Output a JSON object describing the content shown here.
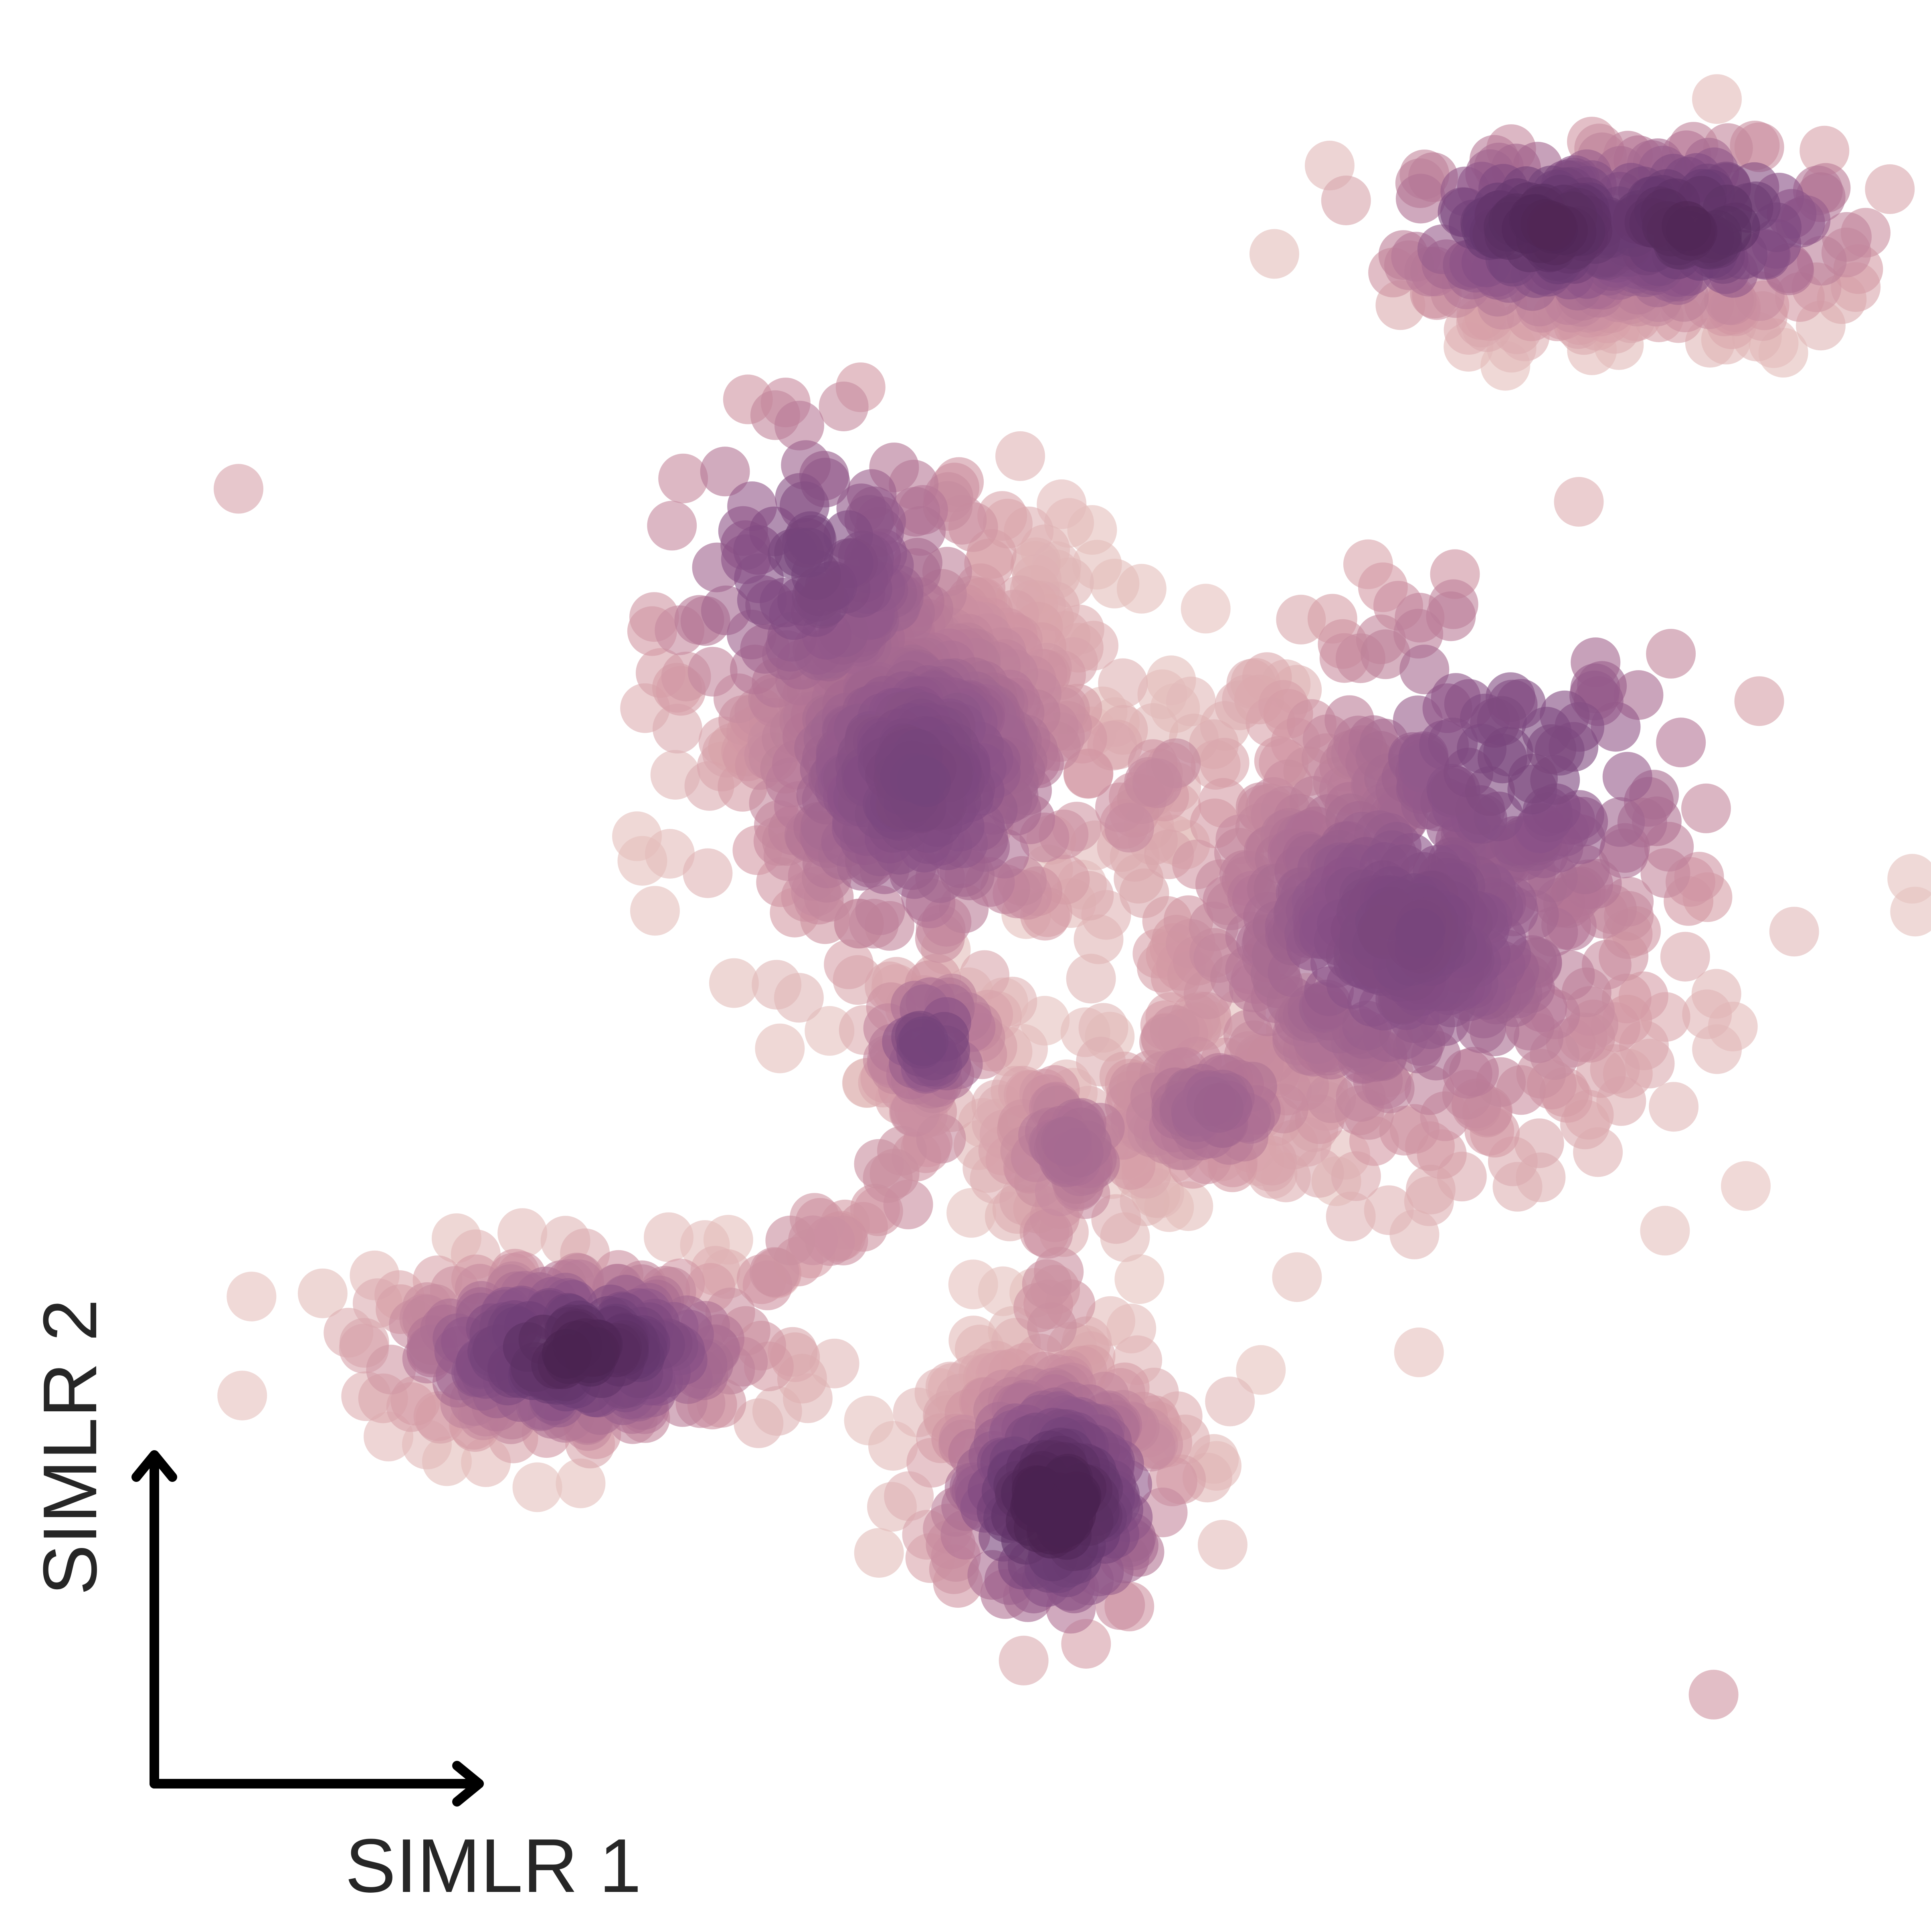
{
  "chart_data": {
    "type": "scatter",
    "title": "",
    "xlabel": "SIMLR 1",
    "ylabel": "SIMLR 2",
    "xlim": [
      0,
      100
    ],
    "ylim": [
      0,
      100
    ],
    "grid": false,
    "legend": "none",
    "axes_style": "arrow-indicator",
    "point_alpha": 0.62,
    "colormap": [
      "#e6c3bf",
      "#d49aa5",
      "#b27495",
      "#8a5287",
      "#6b3c74",
      "#4a2250"
    ],
    "color_value_range": [
      0,
      1
    ],
    "clusters": [
      {
        "id": "top-right",
        "cx": 85.0,
        "cy": 89.2,
        "sx": 5.6,
        "sy": 2.7,
        "n": 320,
        "core": [
          [
            81.4,
            90.3
          ],
          [
            89.2,
            90.5
          ]
        ],
        "intensity": 0.85
      },
      {
        "id": "upper-center",
        "cx": 46.8,
        "cy": 63.8,
        "sx": 5.6,
        "sy": 6.0,
        "n": 600,
        "core": [
          [
            41.9,
            72.2
          ],
          [
            47.6,
            60.4
          ]
        ],
        "intensity": 0.62
      },
      {
        "id": "right-large",
        "cx": 74.0,
        "cy": 52.6,
        "sx": 7.6,
        "sy": 6.9,
        "n": 620,
        "core": [
          [
            74.0,
            52.0
          ],
          [
            80.0,
            61.5
          ]
        ],
        "intensity": 0.6
      },
      {
        "id": "center-small",
        "cx": 48.4,
        "cy": 46.2,
        "sx": 1.8,
        "sy": 1.9,
        "n": 60,
        "core": [
          [
            48.4,
            46.2
          ]
        ],
        "intensity": 0.65
      },
      {
        "id": "bottom-left",
        "cx": 29.1,
        "cy": 29.3,
        "sx": 5.7,
        "sy": 2.5,
        "n": 260,
        "core": [
          [
            29.2,
            29.3
          ]
        ],
        "intensity": 0.88
      },
      {
        "id": "bottom-center",
        "cx": 54.5,
        "cy": 23.5,
        "sx": 3.5,
        "sy": 4.0,
        "n": 250,
        "core": [
          [
            55.0,
            21.0
          ]
        ],
        "intensity": 0.95
      },
      {
        "id": "center-lower",
        "cx": 56.0,
        "cy": 40.5,
        "sx": 2.4,
        "sy": 2.6,
        "n": 90,
        "core": [
          [
            56.0,
            40.5
          ]
        ],
        "intensity": 0.35
      },
      {
        "id": "right-lower-lobe",
        "cx": 63.5,
        "cy": 42.5,
        "sx": 3.4,
        "sy": 2.2,
        "n": 90,
        "core": [
          [
            63.5,
            42.5
          ]
        ],
        "intensity": 0.4
      }
    ],
    "bridges": [
      {
        "from": [
          39.0,
          33.0
        ],
        "to": [
          46.0,
          37.5
        ],
        "n": 18,
        "intensity": 0.22
      },
      {
        "from": [
          46.0,
          37.5
        ],
        "to": [
          48.5,
          43.0
        ],
        "n": 14,
        "intensity": 0.25
      },
      {
        "from": [
          55.0,
          37.0
        ],
        "to": [
          54.5,
          31.0
        ],
        "n": 10,
        "intensity": 0.22
      },
      {
        "from": [
          58.0,
          40.0
        ],
        "to": [
          61.0,
          47.0
        ],
        "n": 14,
        "intensity": 0.22
      },
      {
        "from": [
          58.0,
          58.0
        ],
        "to": [
          61.0,
          61.0
        ],
        "n": 14,
        "intensity": 0.25
      }
    ],
    "outliers": [
      {
        "x": 11.1,
        "y": 76.1,
        "v": 0.15
      },
      {
        "x": 34.4,
        "y": 74.1,
        "v": 0.28
      },
      {
        "x": 67.4,
        "y": 65.5,
        "v": 0.05
      },
      {
        "x": 68.0,
        "y": 65.2,
        "v": 0.08
      },
      {
        "x": 64.4,
        "y": 26.6,
        "v": 0.05
      },
      {
        "x": 90.4,
        "y": 10.7,
        "v": 0.22
      }
    ]
  }
}
